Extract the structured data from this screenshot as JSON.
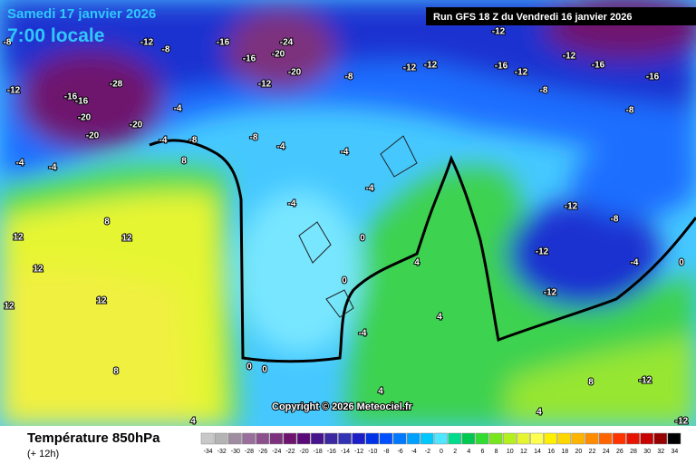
{
  "header": {
    "title": "Samedi 17 janvier 2026",
    "time": "7:00 locale",
    "run": "Run GFS 18 Z du Vendredi 16 janvier 2026"
  },
  "map": {
    "labels": [
      -8,
      -12,
      -8,
      -16,
      -16,
      -24,
      -20,
      -20,
      -12,
      -8,
      -28,
      -16,
      -16,
      -20,
      -20,
      -20,
      -12,
      -4,
      -4,
      -4,
      -4,
      -8,
      -8,
      -4,
      -4,
      -12,
      -12,
      -12,
      -16,
      -12,
      -8,
      -12,
      -16,
      -16,
      -8,
      -12,
      -8,
      -12,
      -12,
      -4,
      -4,
      8,
      8,
      12,
      12,
      12,
      12,
      4,
      0,
      0,
      4,
      -4,
      0,
      0,
      4,
      4,
      8,
      12,
      -12,
      -12,
      8,
      4,
      0,
      -4
    ],
    "copyright": "Copyright © 2026 Meteociel.fr"
  },
  "footer": {
    "variable": "Température 850hPa",
    "lead": "(+ 12h)"
  },
  "scale": {
    "values": [
      -34,
      -32,
      -30,
      -28,
      -26,
      -24,
      -22,
      -20,
      -18,
      -16,
      -14,
      -12,
      -10,
      -8,
      -6,
      -4,
      -2,
      0,
      2,
      4,
      6,
      8,
      10,
      12,
      14,
      16,
      18,
      20,
      22,
      24,
      26,
      28,
      30,
      32,
      34
    ],
    "colors": [
      "#c8c8c8",
      "#b4b4b4",
      "#a08ca0",
      "#9a6e9a",
      "#8c508c",
      "#7d327d",
      "#6e146e",
      "#5a0a78",
      "#46148c",
      "#3c28a0",
      "#3232b4",
      "#1e1ec8",
      "#0032e6",
      "#0050ff",
      "#0078ff",
      "#00a0ff",
      "#00c8ff",
      "#50e6ff",
      "#00dc8c",
      "#00c850",
      "#32dc32",
      "#78e61e",
      "#b4f01e",
      "#e6f532",
      "#ffff50",
      "#fff000",
      "#ffd700",
      "#ffb400",
      "#ff8c00",
      "#ff6400",
      "#ff3200",
      "#e61400",
      "#c80000",
      "#960000",
      "#000000"
    ]
  }
}
